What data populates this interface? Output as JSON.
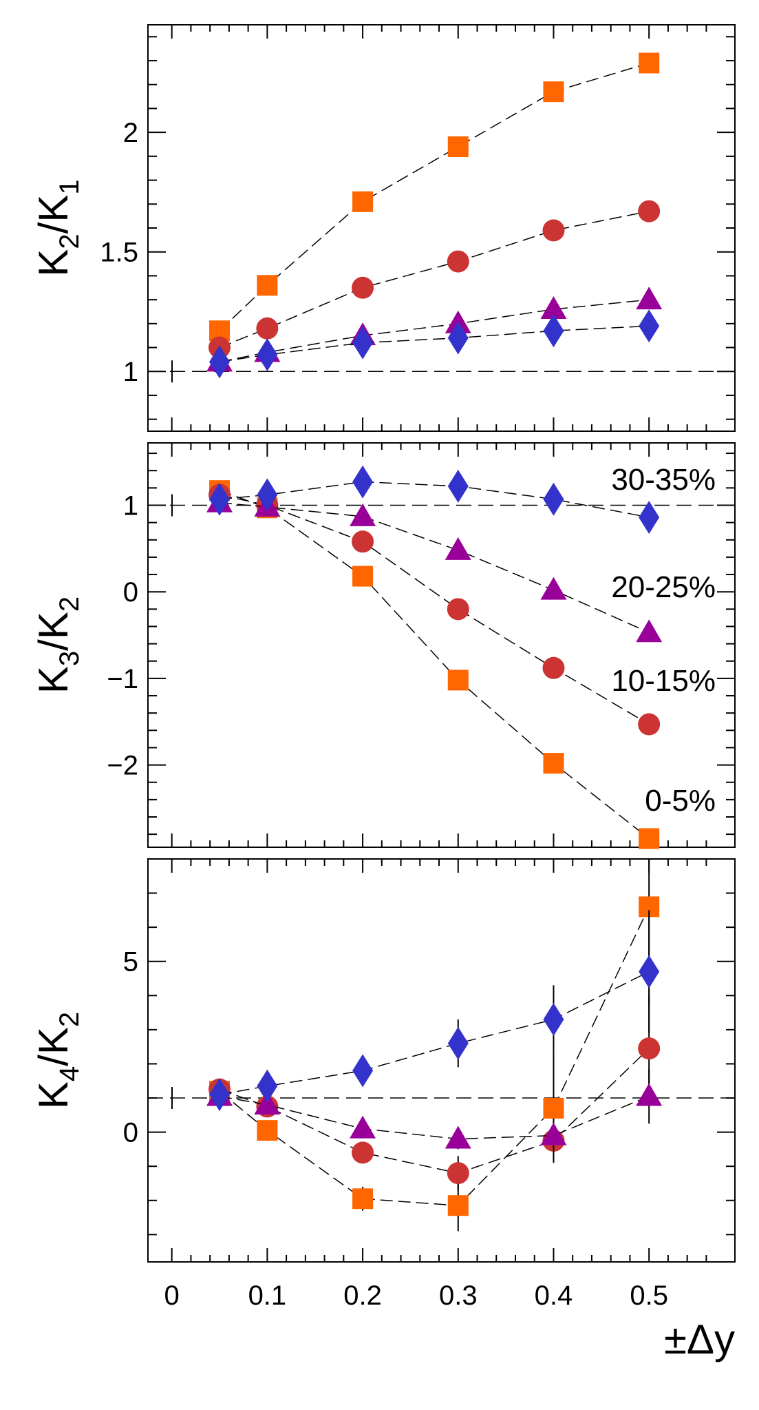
{
  "chart_data": [
    {
      "type": "scatter",
      "panel": "top",
      "ylabel": {
        "main": "K",
        "sub1": "2",
        "sep": "/K",
        "sub2": "1"
      },
      "ylim": [
        0.75,
        2.45
      ],
      "yticks": [
        {
          "value": 1,
          "label": "1"
        },
        {
          "value": 1.5,
          "label": "1.5"
        },
        {
          "value": 2,
          "label": "2"
        }
      ],
      "reference_line": 1,
      "x": [
        0.05,
        0.1,
        0.2,
        0.3,
        0.4,
        0.5
      ],
      "series": [
        {
          "name": "0-5%",
          "marker": "square",
          "color": "#ff6600",
          "values": [
            1.17,
            1.36,
            1.71,
            1.94,
            2.17,
            2.29
          ]
        },
        {
          "name": "10-15%",
          "marker": "circle",
          "color": "#cc3333",
          "values": [
            1.1,
            1.18,
            1.35,
            1.46,
            1.59,
            1.67
          ]
        },
        {
          "name": "20-25%",
          "marker": "triangle",
          "color": "#990099",
          "values": [
            1.04,
            1.08,
            1.15,
            1.2,
            1.26,
            1.3
          ]
        },
        {
          "name": "30-35%",
          "marker": "diamond",
          "color": "#3333cc",
          "values": [
            1.04,
            1.07,
            1.12,
            1.14,
            1.17,
            1.19
          ]
        }
      ]
    },
    {
      "type": "scatter",
      "panel": "middle",
      "ylabel": {
        "main": "K",
        "sub1": "3",
        "sep": "/K",
        "sub2": "2"
      },
      "ylim": [
        -2.95,
        1.72
      ],
      "yticks": [
        {
          "value": -2,
          "label": "−2"
        },
        {
          "value": -1,
          "label": "−1"
        },
        {
          "value": 0,
          "label": "0"
        },
        {
          "value": 1,
          "label": "1"
        }
      ],
      "reference_line": 1,
      "x": [
        0.05,
        0.1,
        0.2,
        0.3,
        0.4,
        0.5
      ],
      "annotations": [
        "30-35%",
        "20-25%",
        "10-15%",
        "0-5%"
      ],
      "series": [
        {
          "name": "0-5%",
          "marker": "square",
          "color": "#ff6600",
          "values": [
            1.17,
            0.97,
            0.18,
            -1.02,
            -1.98,
            -2.85
          ]
        },
        {
          "name": "10-15%",
          "marker": "circle",
          "color": "#cc3333",
          "values": [
            1.12,
            1.0,
            0.58,
            -0.2,
            -0.88,
            -1.53
          ]
        },
        {
          "name": "20-25%",
          "marker": "triangle",
          "color": "#990099",
          "values": [
            1.03,
            0.98,
            0.87,
            0.48,
            0.02,
            -0.47
          ]
        },
        {
          "name": "30-35%",
          "marker": "diamond",
          "color": "#3333cc",
          "values": [
            1.07,
            1.12,
            1.27,
            1.22,
            1.07,
            0.86
          ]
        }
      ]
    },
    {
      "type": "scatter",
      "panel": "bottom",
      "ylabel": {
        "main": "K",
        "sub1": "4",
        "sep": "/K",
        "sub2": "2"
      },
      "ylim": [
        -3.8,
        8.0
      ],
      "yticks": [
        {
          "value": 0,
          "label": "0"
        },
        {
          "value": 5,
          "label": "5"
        }
      ],
      "reference_line": 1,
      "x": [
        0.05,
        0.1,
        0.2,
        0.3,
        0.4,
        0.5
      ],
      "xticks": [
        {
          "value": 0,
          "label": "0"
        },
        {
          "value": 0.1,
          "label": "0.1"
        },
        {
          "value": 0.2,
          "label": "0.2"
        },
        {
          "value": 0.3,
          "label": "0.3"
        },
        {
          "value": 0.4,
          "label": "0.4"
        },
        {
          "value": 0.5,
          "label": "0.5"
        }
      ],
      "xlabel": "±Δy",
      "series": [
        {
          "name": "0-5%",
          "marker": "square",
          "color": "#ff6600",
          "values": [
            1.2,
            0.05,
            -1.95,
            -2.15,
            0.7,
            6.6
          ],
          "errors": [
            0.15,
            0.2,
            0.35,
            0.75,
            1.6,
            2.9
          ]
        },
        {
          "name": "10-15%",
          "marker": "circle",
          "color": "#cc3333",
          "values": [
            1.25,
            0.75,
            -0.6,
            -1.2,
            -0.25,
            2.45
          ],
          "errors": [
            0.1,
            0.15,
            0.3,
            0.5,
            0.6,
            1.5
          ]
        },
        {
          "name": "20-25%",
          "marker": "triangle",
          "color": "#990099",
          "values": [
            1.05,
            0.8,
            0.1,
            -0.2,
            -0.1,
            1.05
          ],
          "errors": [
            0.1,
            0.1,
            0.2,
            0.3,
            0.5,
            0.8
          ]
        },
        {
          "name": "30-35%",
          "marker": "diamond",
          "color": "#3333cc",
          "values": [
            1.1,
            1.35,
            1.8,
            2.6,
            3.3,
            4.7
          ],
          "errors": [
            0.1,
            0.15,
            0.3,
            0.7,
            1.0,
            1.8
          ]
        }
      ]
    }
  ]
}
